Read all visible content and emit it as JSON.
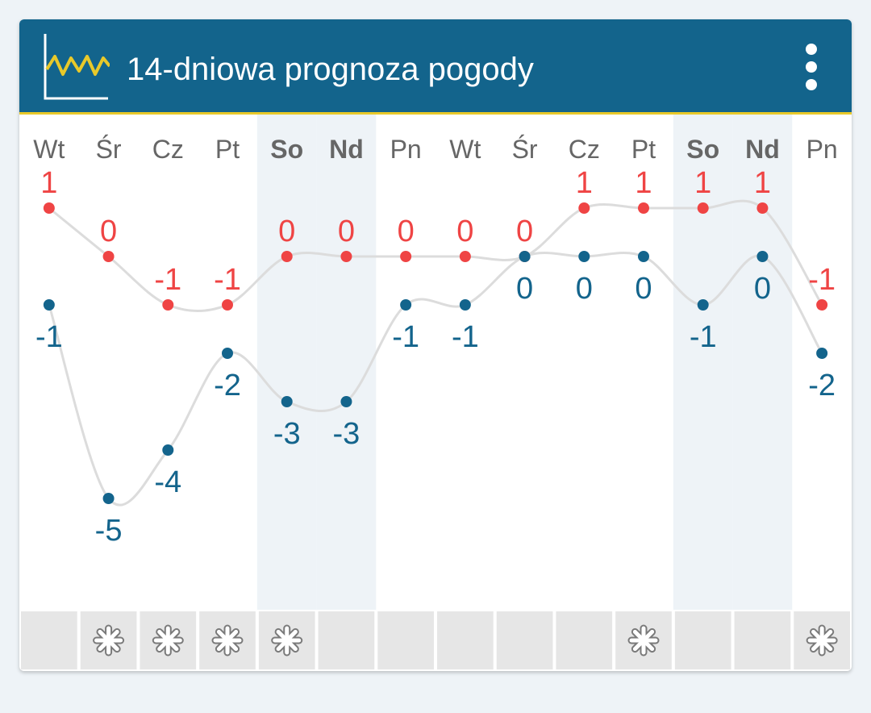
{
  "header": {
    "title": "14-dniowa prognoza pogody",
    "icon": "chart-line-icon",
    "menu_icon": "more-vert-icon"
  },
  "colors": {
    "header_bg": "#13648c",
    "accent_yellow": "#e8c92a",
    "max_color": "#ef4444",
    "min_color": "#13648c",
    "weekend_bg": "#eef3f7",
    "cell_bg": "#e6e6e6",
    "day_label": "#666666",
    "line": "#dcdcdc"
  },
  "chart_data": {
    "type": "line",
    "categories": [
      "Wt",
      "Śr",
      "Cz",
      "Pt",
      "So",
      "Nd",
      "Pn",
      "Wt",
      "Śr",
      "Cz",
      "Pt",
      "So",
      "Nd",
      "Pn"
    ],
    "weekend": [
      false,
      false,
      false,
      false,
      true,
      true,
      false,
      false,
      false,
      false,
      false,
      true,
      true,
      false
    ],
    "series": [
      {
        "values": [
          1,
          0,
          -1,
          -1,
          0,
          0,
          0,
          0,
          0,
          1,
          1,
          1,
          1,
          -1
        ]
      },
      {
        "values": [
          -1,
          -5,
          -4,
          -2,
          -3,
          -3,
          -1,
          -1,
          0,
          0,
          0,
          -1,
          0,
          -2
        ]
      }
    ],
    "precipitation": [
      "none",
      "snow",
      "snow",
      "snow",
      "snow",
      "none",
      "none",
      "none",
      "none",
      "none",
      "snow",
      "none",
      "none",
      "snow"
    ]
  }
}
